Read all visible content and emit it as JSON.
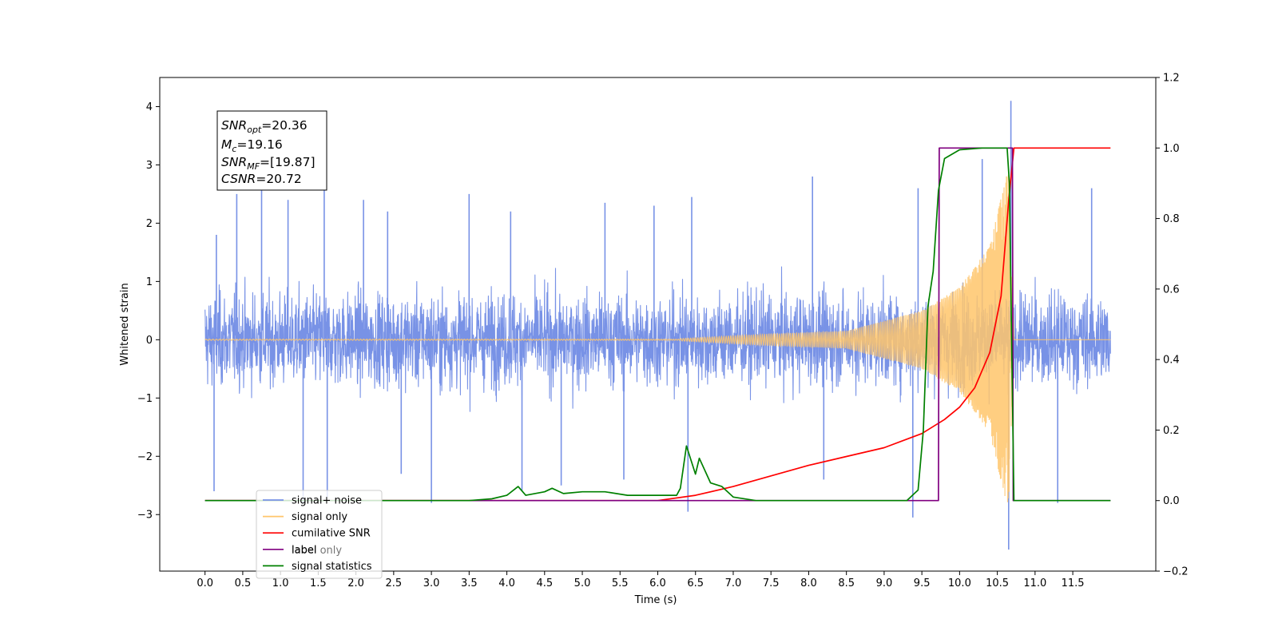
{
  "chart_data": {
    "type": "line",
    "xlabel": "Time (s)",
    "ylabel": "Whitened strain",
    "xlim": [
      -0.6,
      12.6
    ],
    "ylim": [
      -3.97,
      4.5
    ],
    "y2lim": [
      -0.2,
      1.2
    ],
    "x_ticks": [
      "0.0",
      "0.5",
      "1.0",
      "1.5",
      "2.0",
      "2.5",
      "3.0",
      "3.5",
      "4.0",
      "4.5",
      "5.0",
      "5.5",
      "6.0",
      "6.5",
      "7.0",
      "7.5",
      "8.0",
      "8.5",
      "9.0",
      "9.5",
      "10.0",
      "10.5",
      "11.0",
      "11.5"
    ],
    "y_ticks": [
      "4",
      "3",
      "2",
      "1",
      "0",
      "−1",
      "−2",
      "−3"
    ],
    "y2_ticks": [
      "1.2",
      "1.0",
      "0.8",
      "0.6",
      "0.4",
      "0.2",
      "0.0",
      "−0.2"
    ],
    "legend_position": "lower left",
    "series": [
      {
        "name": "signal+ noise",
        "color": "#7892e6",
        "axis": "left",
        "description": "dense noisy trace, envelope roughly ±1.6 with spikes up to 2.5, max spike 4.1 near 10.7 s",
        "x_range": [
          0.0,
          12.0
        ],
        "envelope": 1.6,
        "spikes": [
          [
            0.15,
            1.8
          ],
          [
            0.42,
            2.5
          ],
          [
            0.75,
            2.6
          ],
          [
            1.1,
            2.4
          ],
          [
            1.58,
            2.6
          ],
          [
            2.1,
            2.4
          ],
          [
            2.42,
            2.2
          ],
          [
            3.5,
            2.5
          ],
          [
            4.05,
            2.2
          ],
          [
            5.3,
            2.35
          ],
          [
            5.95,
            2.3
          ],
          [
            6.45,
            2.45
          ],
          [
            8.05,
            2.8
          ],
          [
            9.45,
            2.6
          ],
          [
            10.3,
            3.1
          ],
          [
            10.68,
            4.1
          ],
          [
            11.75,
            2.6
          ],
          [
            0.12,
            -2.6
          ],
          [
            1.3,
            -2.8
          ],
          [
            1.62,
            -2.7
          ],
          [
            2.6,
            -2.3
          ],
          [
            3.0,
            -2.8
          ],
          [
            4.2,
            -2.6
          ],
          [
            4.72,
            -2.5
          ],
          [
            5.55,
            -2.4
          ],
          [
            6.4,
            -2.95
          ],
          [
            8.2,
            -2.4
          ],
          [
            9.38,
            -3.05
          ],
          [
            10.65,
            -3.6
          ],
          [
            11.3,
            -2.8
          ]
        ]
      },
      {
        "name": "signal only",
        "color": "#ffc66b",
        "axis": "left",
        "description": "chirp: flat near 0 until ~6.3 s, amplitude grows toward merger at ~10.7 s",
        "merger_time": 10.7,
        "amplitude_points": [
          [
            6.3,
            0.02
          ],
          [
            7.5,
            0.1
          ],
          [
            8.5,
            0.15
          ],
          [
            9.5,
            0.5
          ],
          [
            10.0,
            0.9
          ],
          [
            10.4,
            1.6
          ],
          [
            10.65,
            3.0
          ],
          [
            10.72,
            0.0
          ]
        ]
      },
      {
        "name": "cumilative SNR",
        "color": "#ff0000",
        "axis": "right",
        "points": [
          [
            0.0,
            0.0
          ],
          [
            6.0,
            0.0
          ],
          [
            6.5,
            0.015
          ],
          [
            7.0,
            0.04
          ],
          [
            7.5,
            0.07
          ],
          [
            8.0,
            0.1
          ],
          [
            8.5,
            0.125
          ],
          [
            9.0,
            0.15
          ],
          [
            9.5,
            0.19
          ],
          [
            9.8,
            0.23
          ],
          [
            10.0,
            0.265
          ],
          [
            10.2,
            0.32
          ],
          [
            10.4,
            0.42
          ],
          [
            10.55,
            0.58
          ],
          [
            10.65,
            0.85
          ],
          [
            10.72,
            1.0
          ],
          [
            12.0,
            1.0
          ]
        ]
      },
      {
        "name": "label",
        "color": "#800080",
        "axis": "right",
        "points": [
          [
            0.0,
            0.0
          ],
          [
            9.72,
            0.0
          ],
          [
            9.73,
            1.0
          ],
          [
            10.7,
            1.0
          ],
          [
            10.71,
            0.0
          ],
          [
            12.0,
            0.0
          ]
        ]
      },
      {
        "name": "signal statistics",
        "color": "#008000",
        "axis": "right",
        "points": [
          [
            0.0,
            0.0
          ],
          [
            3.5,
            0.0
          ],
          [
            3.8,
            0.005
          ],
          [
            4.0,
            0.015
          ],
          [
            4.15,
            0.04
          ],
          [
            4.25,
            0.015
          ],
          [
            4.5,
            0.025
          ],
          [
            4.6,
            0.035
          ],
          [
            4.75,
            0.02
          ],
          [
            5.0,
            0.025
          ],
          [
            5.3,
            0.025
          ],
          [
            5.6,
            0.015
          ],
          [
            6.0,
            0.015
          ],
          [
            6.25,
            0.015
          ],
          [
            6.3,
            0.035
          ],
          [
            6.38,
            0.155
          ],
          [
            6.5,
            0.075
          ],
          [
            6.55,
            0.12
          ],
          [
            6.7,
            0.05
          ],
          [
            6.85,
            0.04
          ],
          [
            7.0,
            0.01
          ],
          [
            7.3,
            0.0
          ],
          [
            9.3,
            0.0
          ],
          [
            9.45,
            0.03
          ],
          [
            9.52,
            0.2
          ],
          [
            9.58,
            0.55
          ],
          [
            9.65,
            0.65
          ],
          [
            9.72,
            0.88
          ],
          [
            9.8,
            0.97
          ],
          [
            10.0,
            0.995
          ],
          [
            10.3,
            1.0
          ],
          [
            10.63,
            1.0
          ],
          [
            10.66,
            0.9
          ],
          [
            10.72,
            0.0
          ],
          [
            12.0,
            0.0
          ]
        ]
      }
    ],
    "legend": [
      "signal+ noise",
      "signal only",
      "cumilative SNR",
      "label",
      "signal statistics"
    ],
    "hidden_legend_entry": "label only",
    "annotation": {
      "snr_opt": {
        "main": "SNR",
        "sub": "opt",
        "value": "=20.36"
      },
      "mc": {
        "main": "M",
        "sub": "c",
        "value": "=19.16"
      },
      "snr_mf": {
        "main": "SNR",
        "sub": "MF",
        "value": "=[19.87]"
      },
      "csnr": {
        "main": "CSNR",
        "value": "=20.72"
      }
    }
  }
}
